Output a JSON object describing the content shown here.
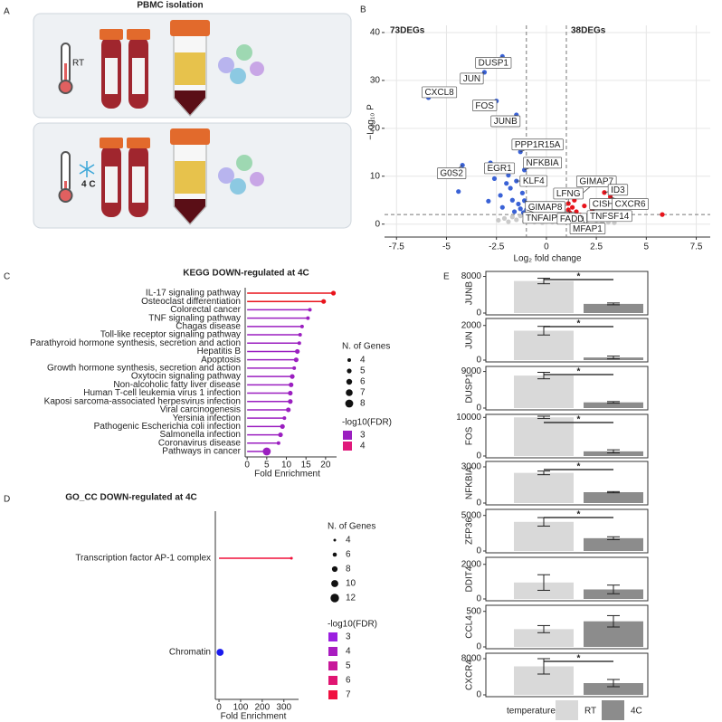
{
  "panel_letters": [
    "A",
    "B",
    "C",
    "D",
    "E"
  ],
  "illustration": {
    "title": "PBMC isolation",
    "conditions": [
      "RT",
      "4 C"
    ]
  },
  "chart_data": [
    {
      "type": "scatter",
      "xlabel": "Log₂ fold change",
      "ylabel": "−Log₁₀ P",
      "xlim": [
        -8.1,
        8.2
      ],
      "ylim": [
        -2.7,
        41.5
      ],
      "xticks": [
        -7.5,
        -5,
        -2.5,
        0,
        2.5,
        5,
        7.5
      ],
      "yticks": [
        0,
        10,
        20,
        30,
        40
      ],
      "grid": true,
      "cutoffs_x": [
        -1,
        1
      ],
      "cutoff_y": 2,
      "annotations": [
        {
          "text": "73DEGs",
          "color": "#2b3fa0"
        },
        {
          "text": "38DEGs",
          "color": "#e8141c"
        }
      ],
      "series": [
        {
          "color": "#bdbdbd",
          "x": [
            -2.4,
            -2.1,
            -1.9,
            -1.7,
            -1.5,
            -1.3,
            -1.1,
            -0.9,
            -0.8,
            -0.7,
            -0.6,
            -0.5,
            -0.4,
            -0.3,
            -0.2,
            -0.1,
            0,
            0.1,
            0.2,
            0.3,
            0.4,
            0.5,
            0.6,
            0.7,
            0.8,
            0.9,
            1.0,
            1.2,
            1.4,
            1.6,
            1.8,
            2.0,
            2.2,
            2.5,
            2.8,
            3.1,
            3.4,
            -0.6,
            -0.2,
            0.3
          ],
          "values": [
            0.8,
            1.2,
            0.5,
            1.5,
            0.9,
            1.7,
            0.6,
            2.5,
            1.1,
            3.1,
            0.4,
            1.9,
            0.8,
            1.3,
            0.3,
            1.0,
            0.5,
            0.7,
            1.6,
            0.4,
            1.1,
            0.9,
            1.4,
            1.8,
            0.6,
            1.2,
            0.5,
            1.0,
            0.7,
            1.3,
            0.9,
            0.6,
            1.1,
            0.8,
            0.5,
            0.4,
            0.3,
            2.2,
            2.8,
            2.0
          ]
        },
        {
          "color": "#3a62d6",
          "x": [
            -2.2,
            -3.1,
            -5.9,
            -2.5,
            -1.5,
            -1.3,
            -1.1,
            -2.8,
            -4.2,
            -1.5,
            -1.1,
            -1.0,
            -4.4,
            -2.0,
            -1.8,
            -2.3,
            -1.7,
            -1.4,
            -1.2,
            -2.6,
            -1.9,
            -1.3,
            -2.2,
            -1.6,
            -1.15,
            -2.9
          ],
          "values": [
            35,
            31.7,
            26.4,
            25.7,
            22.8,
            15.1,
            11.3,
            12.8,
            12.3,
            9,
            4.9,
            3.0,
            6.8,
            8.5,
            7.5,
            6,
            5,
            4.2,
            6.5,
            9.5,
            10.2,
            3.2,
            3.5,
            2.6,
            2.4,
            4.8
          ],
          "labels": [
            "DUSP1",
            "JUN",
            "CXCL8",
            "FOS",
            "JUNB",
            "PPP1R15A",
            "NFKBIA",
            "EGR1",
            "G0S2",
            "KLF4",
            "GIMAP8",
            "TNFAIP8L2",
            null,
            null,
            null,
            null,
            null,
            null,
            null,
            null,
            null,
            null,
            null,
            null,
            null,
            null
          ]
        },
        {
          "color": "#e8141c",
          "x": [
            1.6,
            1.1,
            2.9,
            2.3,
            3.2,
            1.1,
            2.3,
            1.7,
            5.8,
            1.3,
            1.5,
            1.2,
            1.9,
            1.4
          ],
          "values": [
            5.7,
            4.3,
            6.6,
            4.2,
            5.7,
            3.0,
            3.0,
            1.9,
            2.0,
            3.5,
            2.6,
            2.3,
            3.8,
            5.0
          ],
          "labels": [
            "GIMAP7",
            "LFNG",
            "ID3",
            "CISH",
            "CXCR6",
            "FADD",
            "TNFSF14",
            "MFAP1",
            null,
            null,
            null,
            null,
            null,
            null
          ]
        }
      ]
    },
    {
      "type": "lollipop",
      "title": "KEGG DOWN-regulated at 4C",
      "xlabel": "Fold Enrichment",
      "xlim": [
        -0.5,
        22.8
      ],
      "xticks": [
        0,
        5,
        10,
        15,
        20
      ],
      "categories": [
        "IL-17 signaling pathway",
        "Osteoclast differentiation",
        "Colorectal cancer",
        "TNF signaling pathway",
        "Chagas disease",
        "Toll-like receptor signaling pathway",
        "Parathyroid hormone synthesis, secretion and action",
        "Hepatitis B",
        "Apoptosis",
        "Growth hormone synthesis, secretion and action",
        "Oxytocin signaling pathway",
        "Non-alcoholic fatty liver disease",
        "Human T-cell leukemia virus 1 infection",
        "Kaposi sarcoma-associated herpesvirus infection",
        "Viral carcinogenesis",
        "Yersinia infection",
        "Pathogenic Escherichia coli infection",
        "Salmonella infection",
        "Coronavirus disease",
        "Pathways in cancer"
      ],
      "values": [
        22,
        19.5,
        16,
        15.5,
        14,
        13.5,
        13.3,
        12.8,
        12.5,
        12,
        11.5,
        11.2,
        11,
        11,
        10.5,
        9.5,
        9,
        8.5,
        8,
        5
      ],
      "sizes": [
        5,
        5,
        4,
        4,
        4,
        4,
        4,
        5,
        5,
        4,
        5,
        5,
        5,
        5,
        5,
        4,
        5,
        5,
        4,
        8
      ],
      "colors": [
        "#e8141c",
        "#e8141c",
        "#9b1fc0",
        "#9b1fc0",
        "#9b1fc0",
        "#9b1fc0",
        "#9b1fc0",
        "#9b1fc0",
        "#9b1fc0",
        "#9b1fc0",
        "#9b1fc0",
        "#9b1fc0",
        "#9b1fc0",
        "#9b1fc0",
        "#9b1fc0",
        "#9b1fc0",
        "#9b1fc0",
        "#9b1fc0",
        "#9b1fc0",
        "#9b1fc0"
      ],
      "size_legend": {
        "title": "N. of Genes",
        "values": [
          4,
          5,
          6,
          7,
          8
        ]
      },
      "color_legend": {
        "title": "-log10(FDR)",
        "values": [
          3,
          4
        ],
        "colors": [
          "#9b1fc0",
          "#e0197b"
        ]
      }
    },
    {
      "type": "lollipop",
      "title": "GO_CC DOWN-regulated at 4C",
      "xlabel": "Fold Enrichment",
      "xlim": [
        -17,
        368
      ],
      "xticks": [
        0,
        100,
        200,
        300
      ],
      "categories": [
        "Transcription factor AP-1 complex",
        "Chromatin"
      ],
      "values": [
        335,
        5
      ],
      "sizes": [
        4,
        10
      ],
      "colors": [
        "#f0103a",
        "#1a1aee"
      ],
      "size_legend": {
        "title": "N. of Genes",
        "values": [
          4,
          6,
          8,
          10,
          12
        ]
      },
      "color_legend": {
        "title": "-log10(FDR)",
        "values": [
          3,
          4,
          5,
          6,
          7
        ],
        "colors": [
          "#9b1fe0",
          "#a91cc0",
          "#c8179a",
          "#e01572",
          "#f01040"
        ]
      }
    },
    {
      "type": "bar-panels",
      "legend_title": "temperature",
      "series": [
        {
          "name": "RT",
          "color": "#d9d9d9"
        },
        {
          "name": "4C",
          "color": "#8c8c8c"
        }
      ],
      "panels": [
        {
          "title": "JUNB",
          "values": [
            7000,
            2000
          ],
          "errors": [
            600,
            200
          ],
          "ylim": [
            0,
            8700
          ],
          "yticks": [
            0,
            8000
          ],
          "annotation": "*"
        },
        {
          "title": "JUN",
          "values": [
            1700,
            150
          ],
          "errors": [
            250,
            80
          ],
          "ylim": [
            0,
            2300
          ],
          "yticks": [
            0,
            2000
          ],
          "annotation": "*"
        },
        {
          "title": "DUSP1",
          "values": [
            8000,
            1400
          ],
          "errors": [
            800,
            200
          ],
          "ylim": [
            0,
            9800
          ],
          "yticks": [
            0,
            9000
          ],
          "annotation": "*"
        },
        {
          "title": "FOS",
          "values": [
            10000,
            1200
          ],
          "errors": [
            300,
            400
          ],
          "ylim": [
            0,
            10300
          ],
          "yticks": [
            0,
            10000
          ],
          "annotation": "*"
        },
        {
          "title": "NFKBIA",
          "values": [
            2500,
            900
          ],
          "errors": [
            150,
            50
          ],
          "ylim": [
            0,
            3300
          ],
          "yticks": [
            0,
            3000
          ],
          "annotation": "*"
        },
        {
          "title": "ZFP36",
          "values": [
            4100,
            1800
          ],
          "errors": [
            600,
            200
          ],
          "ylim": [
            0,
            5600
          ],
          "yticks": [
            0,
            5000
          ],
          "annotation": "*"
        },
        {
          "title": "DDIT4",
          "values": [
            950,
            550
          ],
          "errors": [
            450,
            250
          ],
          "ylim": [
            0,
            2300
          ],
          "yticks": [
            0,
            2000
          ]
        },
        {
          "title": "CCL4",
          "values": [
            250,
            360
          ],
          "errors": [
            50,
            80
          ],
          "ylim": [
            0,
            560
          ],
          "yticks": [
            0,
            500
          ]
        },
        {
          "title": "CXCR4",
          "values": [
            6300,
            2600
          ],
          "errors": [
            1700,
            800
          ],
          "ylim": [
            0,
            8800
          ],
          "yticks": [
            0,
            8000
          ],
          "annotation": "*"
        }
      ]
    }
  ]
}
